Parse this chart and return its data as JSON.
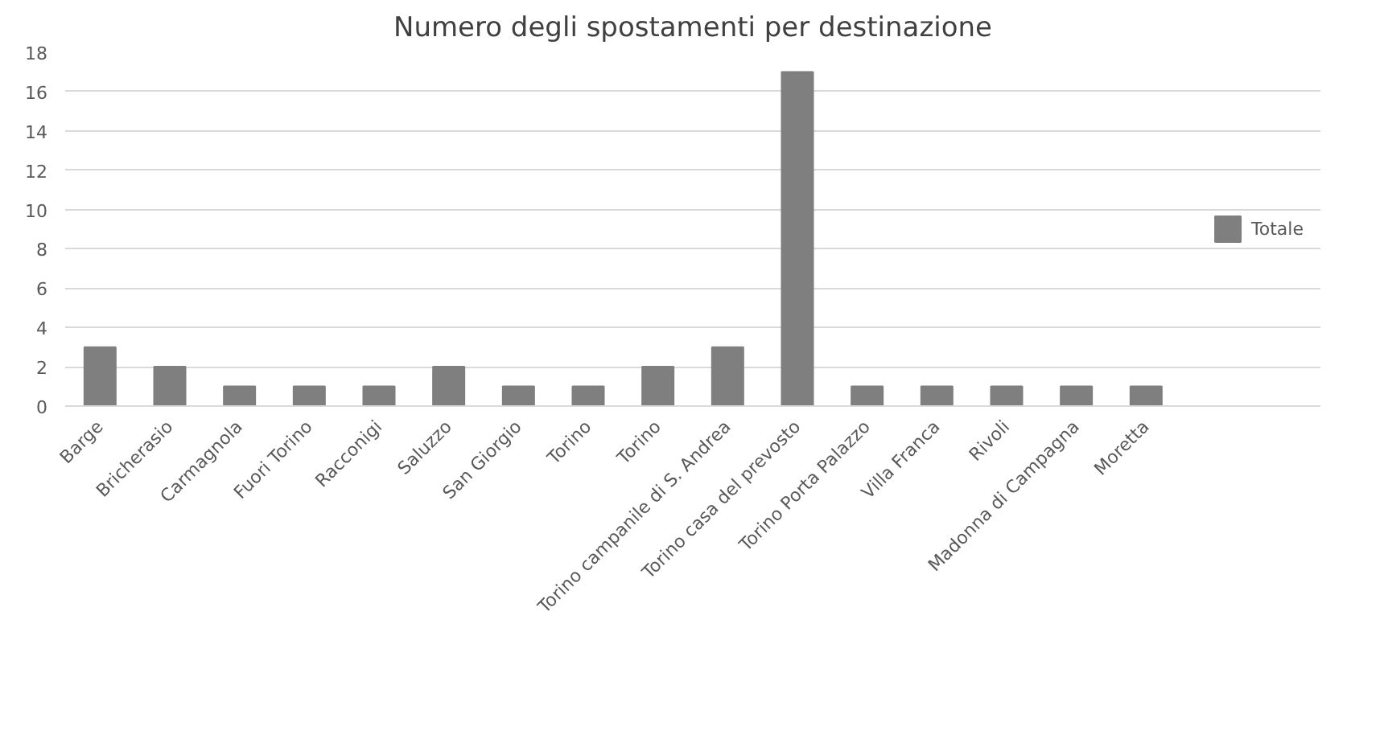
{
  "chart_data": {
    "type": "bar",
    "title": "Numero degli spostamenti per destinazione",
    "categories": [
      "Barge",
      "Bricherasio",
      "Carmagnola",
      "Fuori Torino",
      "Racconigi",
      "Saluzzo",
      "San Giorgio",
      "Torino",
      "Torino",
      "Torino campanile di S. Andrea",
      "Torino casa del prevosto",
      "Torino Porta Palazzo",
      "Villa Franca",
      "Rivoli",
      "Madonna di Campagna",
      "Moretta"
    ],
    "series": [
      {
        "name": "Totale",
        "color": "#7f7f7f",
        "values": [
          3,
          2,
          1,
          1,
          1,
          2,
          1,
          1,
          2,
          3,
          17,
          1,
          1,
          1,
          1,
          1
        ]
      }
    ],
    "ylim": [
      0,
      18
    ],
    "yticks": [
      0,
      2,
      4,
      6,
      8,
      10,
      12,
      14,
      16,
      18
    ],
    "grid": "y",
    "legend": "right"
  }
}
